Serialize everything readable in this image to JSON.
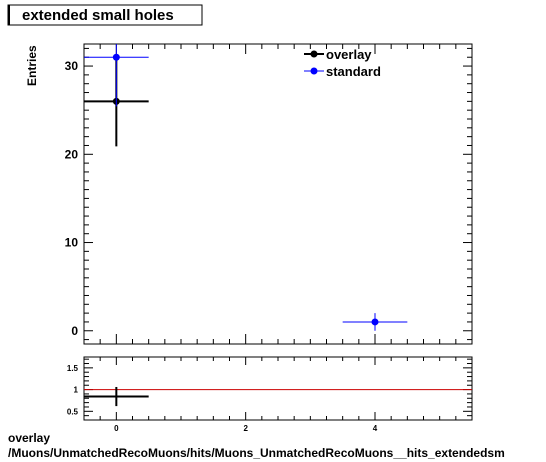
{
  "title": "extended small holes",
  "footer": {
    "line1": "overlay",
    "line2": "/Muons/UnmatchedRecoMuons/hits/Muons_UnmatchedRecoMuons__hits_extendedsm"
  },
  "chart_data": [
    {
      "type": "scatter",
      "title": "extended small holes",
      "xlabel": "",
      "ylabel": "Entries",
      "xlim": [
        -0.5,
        5.5
      ],
      "ylim": [
        -1.5,
        32.5
      ],
      "y_ticks": [
        0,
        10,
        20,
        30
      ],
      "x_ticks": [
        0,
        2,
        4
      ],
      "legend_position": "top-right",
      "series": [
        {
          "name": "overlay",
          "color": "#000000",
          "points": [
            {
              "x": 0,
              "y": 26,
              "xerr": 0.5,
              "yerr": 5.1
            }
          ]
        },
        {
          "name": "standard",
          "color": "#0000ff",
          "points": [
            {
              "x": 0,
              "y": 31,
              "xerr": 0.5,
              "yerr": 5.57
            },
            {
              "x": 4,
              "y": 1,
              "xerr": 0.5,
              "yerr": 1
            }
          ]
        }
      ]
    },
    {
      "type": "scatter",
      "title": "",
      "xlabel": "",
      "ylabel": "",
      "xlim": [
        -0.5,
        5.5
      ],
      "ylim": [
        0.3,
        1.75
      ],
      "y_ticks": [
        0.5,
        1,
        1.5
      ],
      "x_ticks": [
        0,
        2,
        4
      ],
      "reference_line": {
        "y": 1,
        "color": "#cc0000"
      },
      "series": [
        {
          "name": "",
          "color": "#000000",
          "points": [
            {
              "x": 0,
              "y": 0.84,
              "xerr": 0.5,
              "yerr": 0.22
            }
          ]
        }
      ]
    }
  ]
}
